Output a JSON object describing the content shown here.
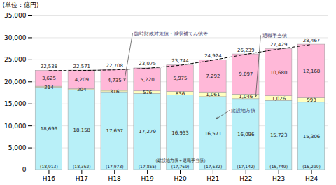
{
  "chart_data": {
    "type": "bar",
    "stacked": true,
    "data_labels": true,
    "grid": true,
    "ylabel": "(単位：億円)",
    "categories": [
      "H16",
      "H17",
      "H18",
      "H19",
      "H20",
      "H21",
      "H22",
      "H23",
      "H24"
    ],
    "series": [
      {
        "name": "建設地方債",
        "color": "#b8f0f8",
        "values": [
          18699,
          18158,
          17657,
          17279,
          16933,
          16571,
          16096,
          15723,
          15306
        ],
        "value_labels": [
          "18,699",
          "18,158",
          "17,657",
          "17,279",
          "16,933",
          "16,571",
          "16,096",
          "15,723",
          "15,306"
        ]
      },
      {
        "name": "退職手当債",
        "color": "#ffffc0",
        "values": [
          214,
          204,
          316,
          576,
          836,
          1061,
          1046,
          1026,
          993
        ],
        "value_labels": [
          "214",
          "204",
          "316",
          "576",
          "836",
          "1,061",
          "1,046",
          "1,026",
          "993"
        ]
      },
      {
        "name": "臨時財政対策債・減収補てん債等",
        "color": "#ffb8d8",
        "values": [
          3625,
          4209,
          4735,
          5220,
          5975,
          7292,
          9097,
          10680,
          12168
        ],
        "value_labels": [
          "3,625",
          "4,209",
          "4,735",
          "5,220",
          "5,975",
          "7,292",
          "9,097",
          "10,680",
          "12,168"
        ]
      },
      {
        "type": "line",
        "line_style": "dashed",
        "color": "#000000",
        "values": [
          22538,
          22571,
          22708,
          23075,
          23744,
          24924,
          26239,
          27429,
          28467
        ],
        "value_labels": [
          "22,538",
          "22,571",
          "22,708",
          "23,075",
          "23,744",
          "24,924",
          "26,239",
          "27,429",
          "28,467"
        ]
      }
    ],
    "subtotals": {
      "label": "（建設地方債＋退職手当債）",
      "values": [
        18913,
        18362,
        17973,
        17855,
        17769,
        17632,
        17142,
        16749,
        16299
      ],
      "value_labels": [
        "(18,913)",
        "(18,362)",
        "(17,973)",
        "(17,855)",
        "(17,769)",
        "(17,632)",
        "(17,142)",
        "(16,749)",
        "(16,299)"
      ]
    },
    "ylim": [
      0,
      35000
    ],
    "yticks": [
      0,
      {
        "value": 5000,
        "label": "5,000"
      },
      {
        "value": 10000,
        "label": "10,000"
      },
      {
        "value": 15000,
        "label": "15,000"
      },
      {
        "value": 20000,
        "label": "20,000"
      },
      {
        "value": 25000,
        "label": "25,000"
      },
      {
        "value": 30000,
        "label": "30,000"
      },
      {
        "value": 35000,
        "label": "35,000"
      }
    ]
  }
}
